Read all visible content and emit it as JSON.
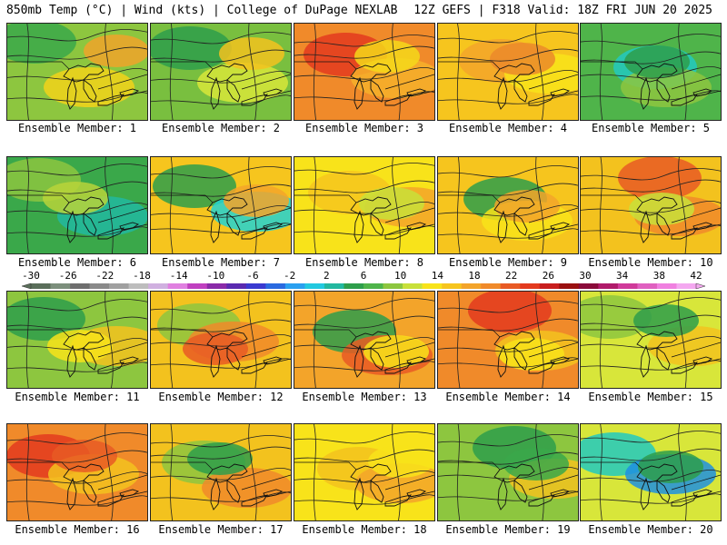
{
  "header": {
    "left": "850mb Temp (°C) | Wind (kts) | College of DuPage NEXLAB",
    "right": "12Z GEFS | F318 Valid: 18Z FRI JUN 20 2025"
  },
  "members": [
    {
      "label": "Ensemble Member: 1",
      "base": "#8dc63f",
      "blobs": [
        "#3aa84a",
        "#f2d21a",
        "#f0a32a"
      ]
    },
    {
      "label": "Ensemble Member: 2",
      "base": "#79bf3f",
      "blobs": [
        "#2e9e4b",
        "#d8e63a",
        "#f3c21e"
      ]
    },
    {
      "label": "Ensemble Member: 3",
      "base": "#f08a2a",
      "blobs": [
        "#e33a1e",
        "#f6b02a",
        "#f5d81a"
      ]
    },
    {
      "label": "Ensemble Member: 4",
      "base": "#f6c51e",
      "blobs": [
        "#f3a42a",
        "#f8e31a",
        "#eb8a2a"
      ]
    },
    {
      "label": "Ensemble Member: 5",
      "base": "#4fb44a",
      "blobs": [
        "#22c9c0",
        "#8dc63f",
        "#2e9e4b"
      ]
    },
    {
      "label": "Ensemble Member: 6",
      "base": "#3aa84a",
      "blobs": [
        "#8dc63f",
        "#22b8a0",
        "#b9d43a"
      ]
    },
    {
      "label": "Ensemble Member: 7",
      "base": "#f6c51e",
      "blobs": [
        "#2e9e4b",
        "#22d2d2",
        "#f3a42a"
      ]
    },
    {
      "label": "Ensemble Member: 8",
      "base": "#f8e31a",
      "blobs": [
        "#f6c51e",
        "#f3a42a",
        "#c8e03a"
      ]
    },
    {
      "label": "Ensemble Member: 9",
      "base": "#f6c51e",
      "blobs": [
        "#2e9e4b",
        "#f8e31a",
        "#f3a42a"
      ]
    },
    {
      "label": "Ensemble Member: 10",
      "base": "#f3c21e",
      "blobs": [
        "#e85a24",
        "#f08a2a",
        "#c8e03a"
      ]
    },
    {
      "label": "Ensemble Member: 11",
      "base": "#8dc63f",
      "blobs": [
        "#2e9e4b",
        "#f3c21e",
        "#f8e31a"
      ]
    },
    {
      "label": "Ensemble Member: 12",
      "base": "#f3c21e",
      "blobs": [
        "#8dc63f",
        "#f08a2a",
        "#e85a24"
      ]
    },
    {
      "label": "Ensemble Member: 13",
      "base": "#f3a42a",
      "blobs": [
        "#2e9e4b",
        "#e85a24",
        "#f8e31a"
      ]
    },
    {
      "label": "Ensemble Member: 14",
      "base": "#f08a2a",
      "blobs": [
        "#e33a1e",
        "#f3c21e",
        "#f8e31a"
      ]
    },
    {
      "label": "Ensemble Member: 15",
      "base": "#d8e63a",
      "blobs": [
        "#8dc63f",
        "#f3c21e",
        "#2e9e4b"
      ]
    },
    {
      "label": "Ensemble Member: 16",
      "base": "#f08a2a",
      "blobs": [
        "#e33a1e",
        "#f3c21e",
        "#e85a24"
      ]
    },
    {
      "label": "Ensemble Member: 17",
      "base": "#f3c21e",
      "blobs": [
        "#8dc63f",
        "#f08a2a",
        "#2e9e4b"
      ]
    },
    {
      "label": "Ensemble Member: 18",
      "base": "#f8e31a",
      "blobs": [
        "#f3c21e",
        "#f3a42a",
        "#f8e31a"
      ]
    },
    {
      "label": "Ensemble Member: 19",
      "base": "#8dc63f",
      "blobs": [
        "#2e9e4b",
        "#f3c21e",
        "#3aa84a"
      ]
    },
    {
      "label": "Ensemble Member: 20",
      "base": "#d8e63a",
      "blobs": [
        "#22c9c0",
        "#1e8fe0",
        "#2e9e4b"
      ]
    }
  ],
  "colorbar": {
    "labels": [
      "-30",
      "-26",
      "-22",
      "-18",
      "-14",
      "-10",
      "-6",
      "-2",
      "2",
      "6",
      "10",
      "14",
      "18",
      "22",
      "26",
      "30",
      "34",
      "38",
      "42"
    ],
    "colors": [
      "#5a6e5a",
      "#7c8f7c",
      "#6e6e6e",
      "#8a8a8a",
      "#a0a0a0",
      "#bdbdbd",
      "#d0b0e0",
      "#e080e0",
      "#c040c0",
      "#8a2aa8",
      "#5a2ab0",
      "#3a3ad0",
      "#2a6ae0",
      "#2aa0f0",
      "#22c9e0",
      "#22b8a0",
      "#2e9e4b",
      "#4fb44a",
      "#8dc63f",
      "#c8e03a",
      "#f8e31a",
      "#f6c51e",
      "#f3a42a",
      "#f08a2a",
      "#e85a24",
      "#e33a1e",
      "#c81e1e",
      "#9a1010",
      "#8a0a3a",
      "#b01a6a",
      "#d03a9a",
      "#e060c0",
      "#f080e0",
      "#f4a8f0"
    ]
  }
}
